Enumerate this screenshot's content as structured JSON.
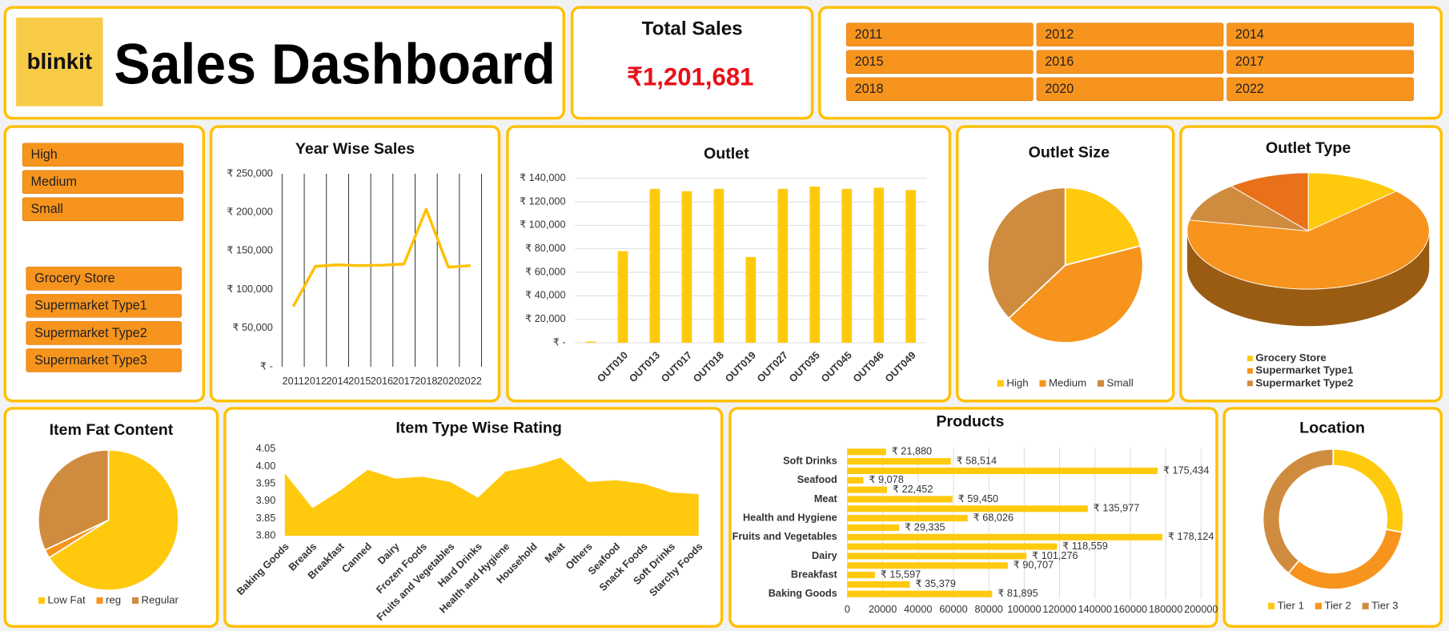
{
  "header": {
    "logo": "blinkit",
    "title": "Sales Dashboard"
  },
  "kpi": {
    "label": "Total Sales",
    "value": "₹1,201,681"
  },
  "slicers": {
    "years": [
      "2011",
      "2012",
      "2014",
      "2015",
      "2016",
      "2017",
      "2018",
      "2020",
      "2022"
    ],
    "outlet_size": [
      "High",
      "Medium",
      "Small"
    ],
    "outlet_type": [
      "Grocery Store",
      "Supermarket Type1",
      "Supermarket Type2",
      "Supermarket Type3"
    ]
  },
  "chart_data": [
    {
      "type": "line",
      "title": "Year Wise Sales",
      "categories": [
        "2011",
        "2012",
        "2014",
        "2015",
        "2016",
        "2017",
        "2018",
        "2020",
        "2022"
      ],
      "values": [
        78000,
        130000,
        132000,
        131000,
        131500,
        133000,
        204000,
        129000,
        131000
      ],
      "color": "#ffc000",
      "ylim": [
        0,
        250000
      ],
      "yticks": [
        {
          "value": 0,
          "label": "₹ -"
        },
        {
          "value": 50000,
          "label": "₹ 50,000"
        },
        {
          "value": 100000,
          "label": "₹ 100,000"
        },
        {
          "value": 150000,
          "label": "₹ 150,000"
        },
        {
          "value": 200000,
          "label": "₹ 200,000"
        },
        {
          "value": 250000,
          "label": "₹ 250,000"
        }
      ],
      "grid": "x"
    },
    {
      "type": "bar",
      "title": "Outlet",
      "categories": [
        null,
        "OUT010",
        "OUT013",
        "OUT017",
        "OUT018",
        "OUT019",
        "OUT027",
        "OUT035",
        "OUT045",
        "OUT046",
        "OUT049"
      ],
      "values": [
        1000,
        78000,
        131000,
        129000,
        131000,
        73000,
        131000,
        133000,
        131000,
        132000,
        130000
      ],
      "color": "#ffc90e",
      "ylim": [
        0,
        140000
      ],
      "yticks": [
        {
          "value": 0,
          "label": "₹ -"
        },
        {
          "value": 20000,
          "label": "₹ 20,000"
        },
        {
          "value": 40000,
          "label": "₹ 40,000"
        },
        {
          "value": 60000,
          "label": "₹ 60,000"
        },
        {
          "value": 80000,
          "label": "₹ 80,000"
        },
        {
          "value": 100000,
          "label": "₹ 100,000"
        },
        {
          "value": 120000,
          "label": "₹ 120,000"
        },
        {
          "value": 140000,
          "label": "₹ 140,000"
        }
      ],
      "grid": true
    },
    {
      "type": "pie",
      "title": "Outlet Size",
      "categories": [
        "High",
        "Medium",
        "Small"
      ],
      "values": [
        21,
        42,
        37
      ],
      "colors": [
        "#ffc90e",
        "#f7941d",
        "#cf8c3e"
      ],
      "legend": "bottom"
    },
    {
      "type": "pie3d",
      "title": "Outlet Type",
      "categories": [
        "Grocery Store",
        "Supermarket Type1",
        "Supermarket Type2",
        null
      ],
      "values": [
        13,
        65,
        11,
        11
      ],
      "colors": [
        "#ffc90e",
        "#f7941d",
        "#cf8c3e",
        "#e8711a"
      ],
      "legend": "bottom-left"
    },
    {
      "type": "pie",
      "title": "Item Fat Content",
      "categories": [
        "Low Fat",
        "reg",
        "Regular"
      ],
      "values": [
        66,
        2,
        32
      ],
      "colors": [
        "#ffc90e",
        "#f7941d",
        "#cf8c3e"
      ],
      "legend": "bottom"
    },
    {
      "type": "area",
      "title": "Item Type Wise Rating",
      "categories": [
        "Baking Goods",
        "Breads",
        "Breakfast",
        "Canned",
        "Dairy",
        "Frozen Foods",
        "Fruits and Vegetables",
        "Hard Drinks",
        "Health and Hygiene",
        "Household",
        "Meat",
        "Others",
        "Seafood",
        "Snack Foods",
        "Soft Drinks",
        "Starchy Foods"
      ],
      "values": [
        3.98,
        3.88,
        3.93,
        3.99,
        3.965,
        3.97,
        3.955,
        3.91,
        3.985,
        4.0,
        4.025,
        3.955,
        3.96,
        3.95,
        3.925,
        3.92
      ],
      "color": "#ffc90e",
      "ylim": [
        3.8,
        4.05
      ],
      "yticks": [
        {
          "value": 3.8,
          "label": "3.80"
        },
        3.85,
        {
          "value": 3.9,
          "label": "3.90"
        },
        3.95,
        {
          "value": 4.0,
          "label": "4.00"
        },
        4.05
      ]
    },
    {
      "type": "hbar",
      "title": "Products",
      "categories": [
        "Baking Goods",
        null,
        "Breakfast",
        null,
        "Dairy",
        null,
        "Fruits and Vegetables",
        null,
        "Health and Hygiene",
        null,
        "Meat",
        null,
        "Seafood",
        null,
        "Soft Drinks",
        null
      ],
      "values": [
        81895,
        35379,
        15597,
        90707,
        101276,
        118559,
        178124,
        29335,
        68026,
        135977,
        59450,
        22452,
        9078,
        175434,
        58514,
        21880
      ],
      "value_labels": [
        "₹ 81,895",
        "₹ 35,379",
        "₹ 15,597",
        "₹ 90,707",
        "₹ 101,276",
        "₹ 118,559",
        "₹ 178,124",
        "₹ 29,335",
        "₹ 68,026",
        "₹ 135,977",
        "₹ 59,450",
        "₹ 22,452",
        "₹ 9,078",
        "₹ 175,434",
        "₹ 58,514",
        "₹ 21,880"
      ],
      "color": "#ffc90e",
      "xlim": [
        0,
        200000
      ],
      "xticks": [
        0,
        20000,
        40000,
        60000,
        80000,
        100000,
        120000,
        140000,
        160000,
        180000,
        200000
      ],
      "grid": true
    },
    {
      "type": "donut",
      "title": "Location",
      "categories": [
        "Tier 1",
        "Tier 2",
        "Tier 3"
      ],
      "values": [
        28,
        33,
        39
      ],
      "colors": [
        "#ffc90e",
        "#f7941d",
        "#cf8c3e"
      ],
      "legend": "bottom"
    }
  ]
}
